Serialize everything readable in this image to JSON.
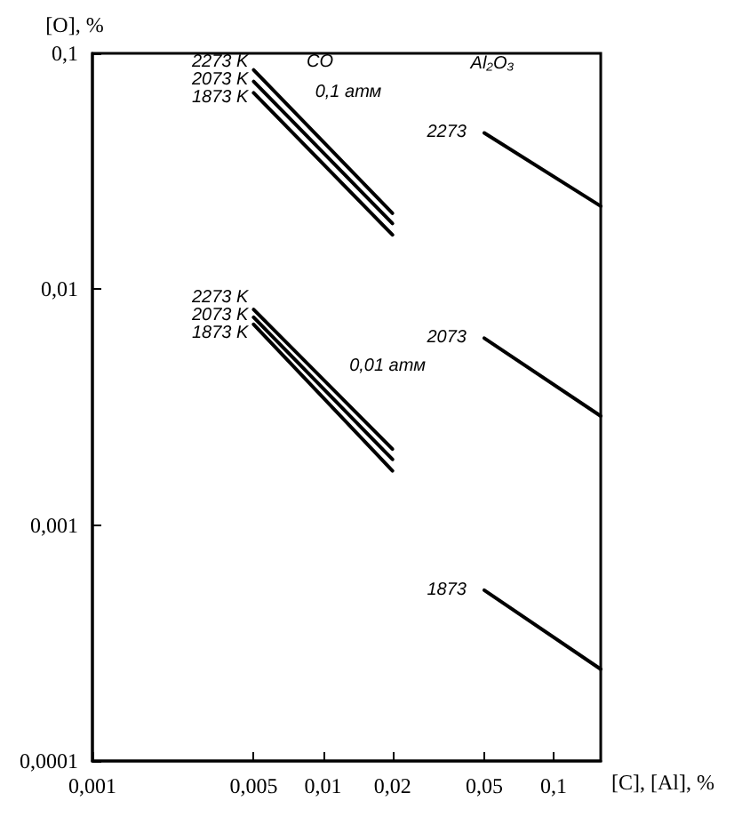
{
  "chart_data": {
    "type": "line",
    "xlabel": "[C], [Al], %",
    "ylabel": "[O], %",
    "log": "xy",
    "marker": "none",
    "line_style": "solid",
    "grid": false,
    "xlim": [
      0.001,
      0.16
    ],
    "ylim": [
      0.0001,
      0.1
    ],
    "xticks": [
      {
        "value": 0.001,
        "label": "0,001"
      },
      {
        "value": 0.005,
        "label": "0,005"
      },
      {
        "value": 0.01,
        "label": "0,01"
      },
      {
        "value": 0.02,
        "label": "0,02"
      },
      {
        "value": 0.05,
        "label": "0,05"
      },
      {
        "value": 0.1,
        "label": "0,1"
      }
    ],
    "yticks": [
      {
        "value": 0.0001,
        "label": "0,0001"
      },
      {
        "value": 0.001,
        "label": "0,001"
      },
      {
        "value": 0.01,
        "label": "0,01"
      },
      {
        "value": 0.1,
        "label": "0,1"
      }
    ],
    "series": [
      {
        "name": "2273 K",
        "color": "#000000",
        "x": [
          0.005,
          0.02
        ],
        "values": [
          0.085,
          0.021
        ]
      },
      {
        "name": "2073 K",
        "color": "#000000",
        "x": [
          0.005,
          0.02
        ],
        "values": [
          0.076,
          0.019
        ]
      },
      {
        "name": "1873 K",
        "color": "#000000",
        "x": [
          0.005,
          0.02
        ],
        "values": [
          0.068,
          0.017
        ]
      },
      {
        "name": "2273 K",
        "color": "#000000",
        "x": [
          0.005,
          0.02
        ],
        "values": [
          0.0082,
          0.0021
        ]
      },
      {
        "name": "2073 K",
        "color": "#000000",
        "x": [
          0.005,
          0.02
        ],
        "values": [
          0.0076,
          0.0019
        ]
      },
      {
        "name": "1873 K",
        "color": "#000000",
        "x": [
          0.005,
          0.02
        ],
        "values": [
          0.0071,
          0.0017
        ]
      },
      {
        "name": "2273",
        "color": "#000000",
        "x": [
          0.05,
          0.16
        ],
        "values": [
          0.046,
          0.0225
        ]
      },
      {
        "name": "2073",
        "color": "#000000",
        "x": [
          0.05,
          0.16
        ],
        "values": [
          0.0062,
          0.0029
        ]
      },
      {
        "name": "1873",
        "color": "#000000",
        "x": [
          0.05,
          0.16
        ],
        "values": [
          0.00053,
          0.000245
        ]
      }
    ],
    "annotations": [
      "CO",
      "0,1 атм",
      "0,01 атм",
      "Al₂O₃"
    ]
  }
}
